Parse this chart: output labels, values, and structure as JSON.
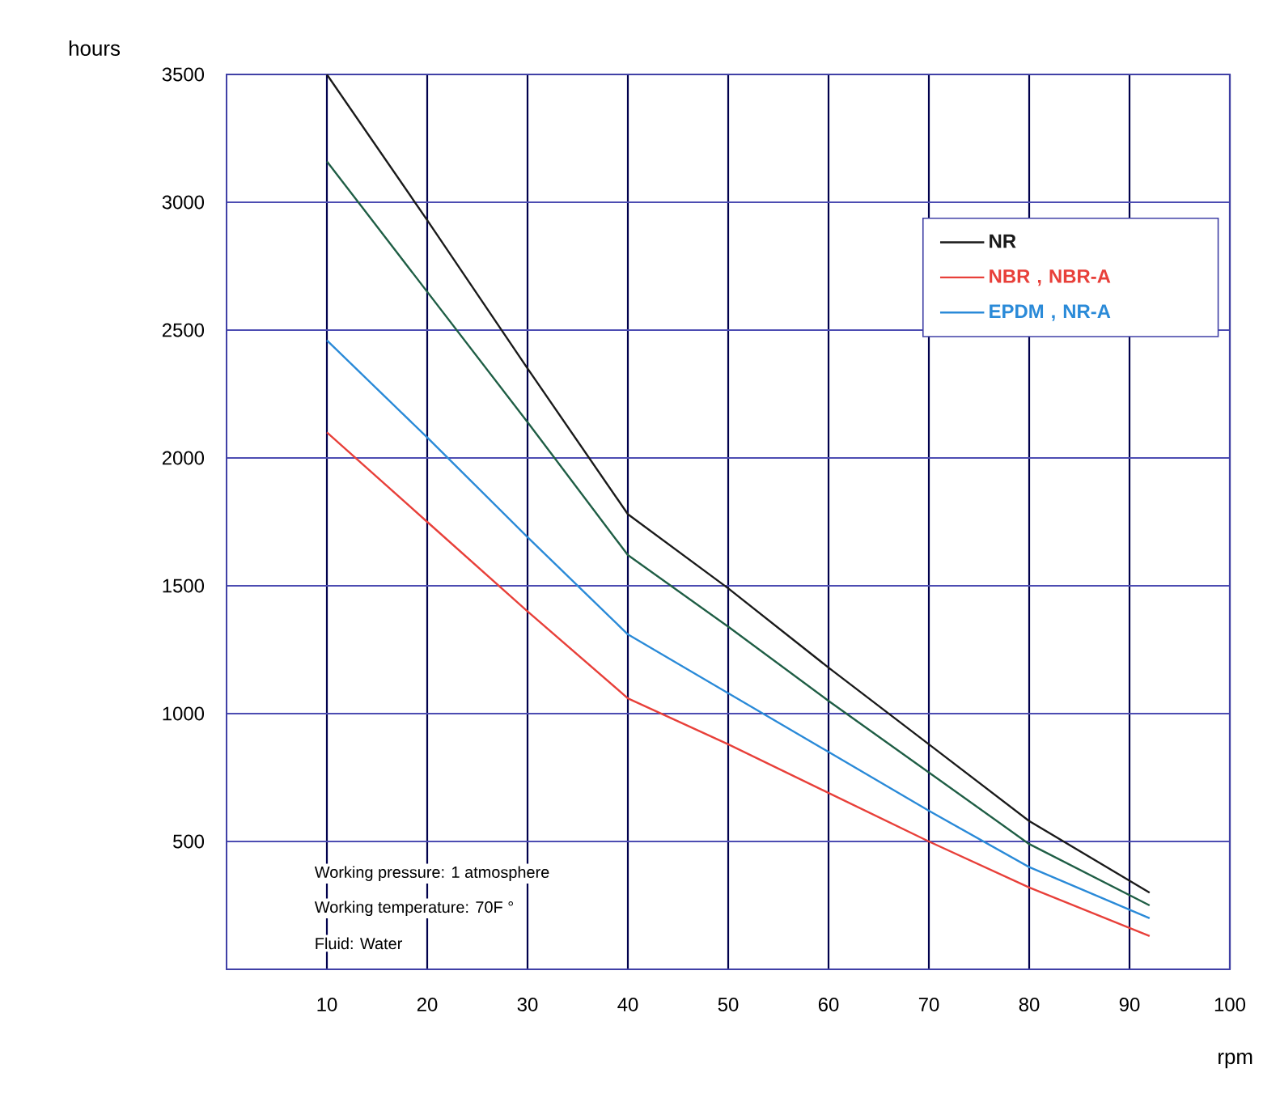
{
  "chart_data": {
    "type": "line",
    "xlabel": "rpm",
    "ylabel": "hours",
    "x": [
      10,
      20,
      30,
      40,
      50,
      60,
      70,
      80,
      92
    ],
    "xlim": [
      0,
      100
    ],
    "ylim": [
      0,
      3500
    ],
    "xticks": [
      10,
      20,
      30,
      40,
      50,
      60,
      70,
      80,
      90,
      100
    ],
    "yticks": [
      500,
      1000,
      1500,
      2000,
      2500,
      3000,
      3500
    ],
    "grid": true,
    "legend": "top right",
    "series": [
      {
        "name": "NR",
        "color": "#1a1a1a",
        "values": [
          3500,
          2930,
          2350,
          1780,
          1490,
          1180,
          880,
          580,
          300
        ]
      },
      {
        "name": "NBR , NBR-A",
        "color": "#e8403a",
        "values": [
          2100,
          1750,
          1400,
          1060,
          880,
          690,
          500,
          320,
          130
        ]
      },
      {
        "name": "EPDM , NR-A",
        "color": "#2a8ad8",
        "values": [
          2460,
          2080,
          1690,
          1310,
          1080,
          850,
          620,
          400,
          200
        ]
      },
      {
        "color": "#1f5e45",
        "values": [
          3160,
          2650,
          2140,
          1620,
          1340,
          1050,
          770,
          490,
          250
        ]
      }
    ],
    "annotations": [
      "Working pressure: 1 atmosphere",
      "Working temperature: 70F °",
      "Fluid: Water"
    ]
  }
}
